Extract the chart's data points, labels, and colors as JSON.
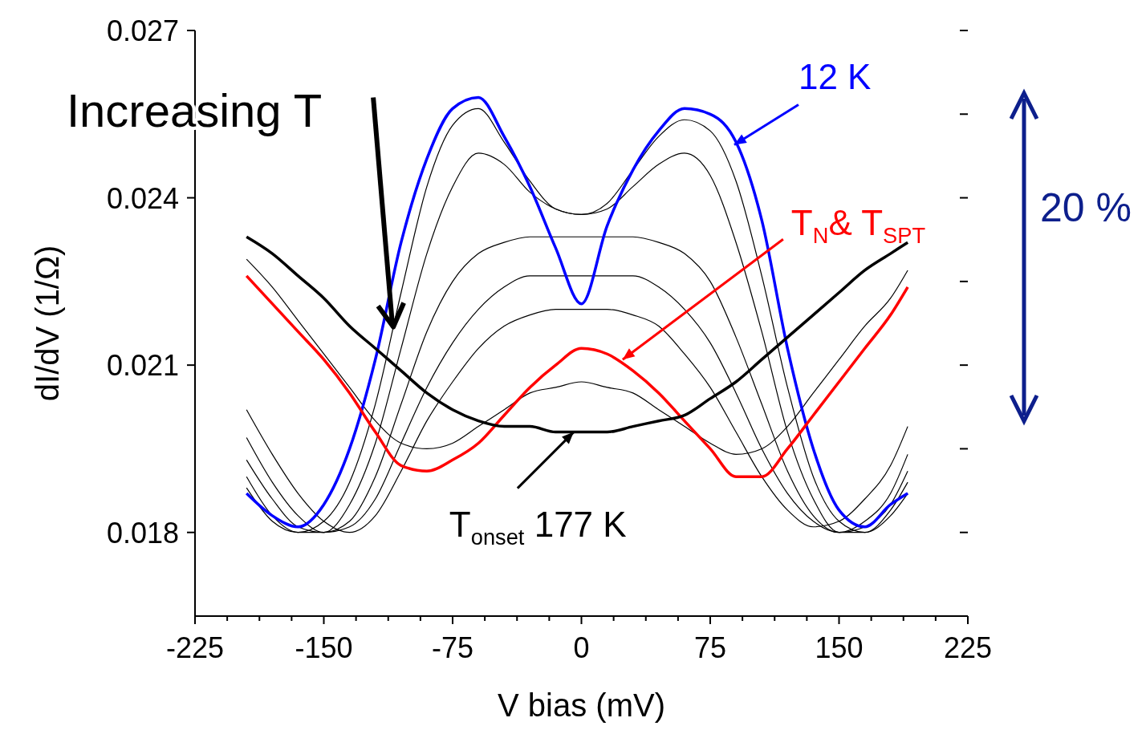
{
  "chart_data": {
    "type": "line",
    "xlabel": "V bias (mV)",
    "ylabel": "dI/dV (1/Ω)",
    "xlim": [
      -225,
      225
    ],
    "ylim": [
      0.0165,
      0.027
    ],
    "xticks": [
      -225,
      {
        "value": -206.25,
        "label": null
      },
      {
        "value": -187.5,
        "label": null
      },
      {
        "value": -168.75,
        "label": null
      },
      -150,
      {
        "value": -131.25,
        "label": null
      },
      {
        "value": -112.5,
        "label": null
      },
      {
        "value": -93.75,
        "label": null
      },
      -75,
      {
        "value": -56.25,
        "label": null
      },
      {
        "value": -37.5,
        "label": null
      },
      {
        "value": -18.75,
        "label": null
      },
      0,
      {
        "value": 18.75,
        "label": null
      },
      {
        "value": 37.5,
        "label": null
      },
      {
        "value": 56.25,
        "label": null
      },
      75,
      {
        "value": 93.75,
        "label": null
      },
      {
        "value": 112.5,
        "label": null
      },
      {
        "value": 131.25,
        "label": null
      },
      150,
      {
        "value": 168.75,
        "label": null
      },
      {
        "value": 187.5,
        "label": null
      },
      {
        "value": 206.25,
        "label": null
      },
      225
    ],
    "yticks": [
      0.018,
      {
        "value": 0.0195,
        "label": null
      },
      0.021,
      {
        "value": 0.0225,
        "label": null
      },
      0.024,
      {
        "value": 0.0255,
        "label": null
      },
      0.027
    ],
    "grid": false,
    "marker": "none",
    "line_style": "solid",
    "x": [
      -195,
      -180,
      -165,
      -150,
      -135,
      -120,
      -105,
      -90,
      -75,
      -60,
      -45,
      -30,
      -15,
      0,
      15,
      30,
      45,
      60,
      75,
      90,
      105,
      120,
      135,
      150,
      165,
      180,
      190
    ],
    "series": [
      {
        "color": "#000000",
        "values": [
          0.0188,
          0.0182,
          0.018,
          0.0182,
          0.0189,
          0.0203,
          0.0223,
          0.0242,
          0.0253,
          0.0256,
          0.025,
          0.0243,
          0.0238,
          0.0237,
          0.0239,
          0.0245,
          0.0251,
          0.0254,
          0.0252,
          0.0243,
          0.0226,
          0.0206,
          0.019,
          0.0182,
          0.018,
          0.0183,
          0.0187
        ]
      },
      {
        "color": "#000000",
        "values": [
          0.019,
          0.0183,
          0.018,
          0.018,
          0.0185,
          0.0196,
          0.0213,
          0.023,
          0.0242,
          0.0248,
          0.0246,
          0.0241,
          0.0238,
          0.0237,
          0.0238,
          0.0242,
          0.0246,
          0.0248,
          0.0244,
          0.0232,
          0.0216,
          0.0198,
          0.0186,
          0.018,
          0.018,
          0.0184,
          0.0189
        ]
      },
      {
        "color": "#000000",
        "values": [
          0.0193,
          0.0186,
          0.0181,
          0.018,
          0.0182,
          0.019,
          0.0203,
          0.0216,
          0.0225,
          0.023,
          0.0232,
          0.0233,
          0.0233,
          0.0233,
          0.0233,
          0.0233,
          0.0232,
          0.023,
          0.0225,
          0.0215,
          0.0203,
          0.0191,
          0.0183,
          0.018,
          0.0181,
          0.0185,
          0.0191
        ]
      },
      {
        "color": "#000000",
        "values": [
          0.0197,
          0.0189,
          0.0183,
          0.018,
          0.0181,
          0.0186,
          0.0196,
          0.0206,
          0.0214,
          0.022,
          0.0224,
          0.0226,
          0.0226,
          0.0226,
          0.0226,
          0.0226,
          0.0224,
          0.022,
          0.0214,
          0.0205,
          0.0195,
          0.0187,
          0.0182,
          0.018,
          0.0182,
          0.0187,
          0.0194
        ]
      },
      {
        "color": "#000000",
        "values": [
          0.0202,
          0.0194,
          0.0187,
          0.0182,
          0.018,
          0.0183,
          0.0191,
          0.02,
          0.0207,
          0.0213,
          0.0217,
          0.0219,
          0.022,
          0.022,
          0.022,
          0.0219,
          0.0217,
          0.0212,
          0.0206,
          0.0198,
          0.019,
          0.0184,
          0.0181,
          0.0182,
          0.0186,
          0.0192,
          0.0199
        ]
      },
      {
        "color": "#000000",
        "values": [
          0.0229,
          0.0224,
          0.0218,
          0.0212,
          0.0206,
          0.02,
          0.0196,
          0.0195,
          0.0196,
          0.0199,
          0.0202,
          0.0205,
          0.0206,
          0.0207,
          0.0206,
          0.0205,
          0.0202,
          0.0199,
          0.0196,
          0.0194,
          0.0195,
          0.0199,
          0.0205,
          0.0211,
          0.0217,
          0.0222,
          0.0227
        ]
      },
      {
        "color": "#0000ff",
        "values": [
          0.0187,
          0.0183,
          0.0181,
          0.0185,
          0.0195,
          0.0211,
          0.0232,
          0.0247,
          0.0256,
          0.0258,
          0.0251,
          0.0242,
          0.0231,
          0.0221,
          0.0235,
          0.0245,
          0.0252,
          0.0256,
          0.0255,
          0.025,
          0.0236,
          0.0213,
          0.0195,
          0.0184,
          0.0181,
          0.0185,
          0.0187
        ]
      },
      {
        "color": "#ff0000",
        "values": [
          0.0226,
          0.0221,
          0.0216,
          0.0211,
          0.0205,
          0.0198,
          0.0192,
          0.0191,
          0.0193,
          0.0196,
          0.0201,
          0.0206,
          0.021,
          0.0213,
          0.0212,
          0.0209,
          0.0205,
          0.02,
          0.0195,
          0.019,
          0.019,
          0.0195,
          0.0201,
          0.0207,
          0.0213,
          0.0219,
          0.0224
        ]
      },
      {
        "color": "#000000",
        "values": [
          0.0233,
          0.023,
          0.0226,
          0.0222,
          0.0217,
          0.0213,
          0.0209,
          0.0205,
          0.0202,
          0.02,
          0.0199,
          0.0199,
          0.0198,
          0.0198,
          0.0198,
          0.0199,
          0.02,
          0.0201,
          0.0204,
          0.0207,
          0.0211,
          0.0215,
          0.0219,
          0.0223,
          0.0227,
          0.023,
          0.0232
        ]
      }
    ],
    "annotations": [
      {
        "text": "Increasing T",
        "x": -110,
        "y": 0.0217
      },
      {
        "text": "12 K",
        "x": 89,
        "y": 0.02495
      },
      {
        "text": "T$_{N}$& T$_{SPT}$",
        "x": 24,
        "y": 0.0211
      },
      {
        "text": "T$_{onset}$ 177 K",
        "x": -4.5,
        "y": 0.0198
      },
      "20 %"
    ]
  }
}
